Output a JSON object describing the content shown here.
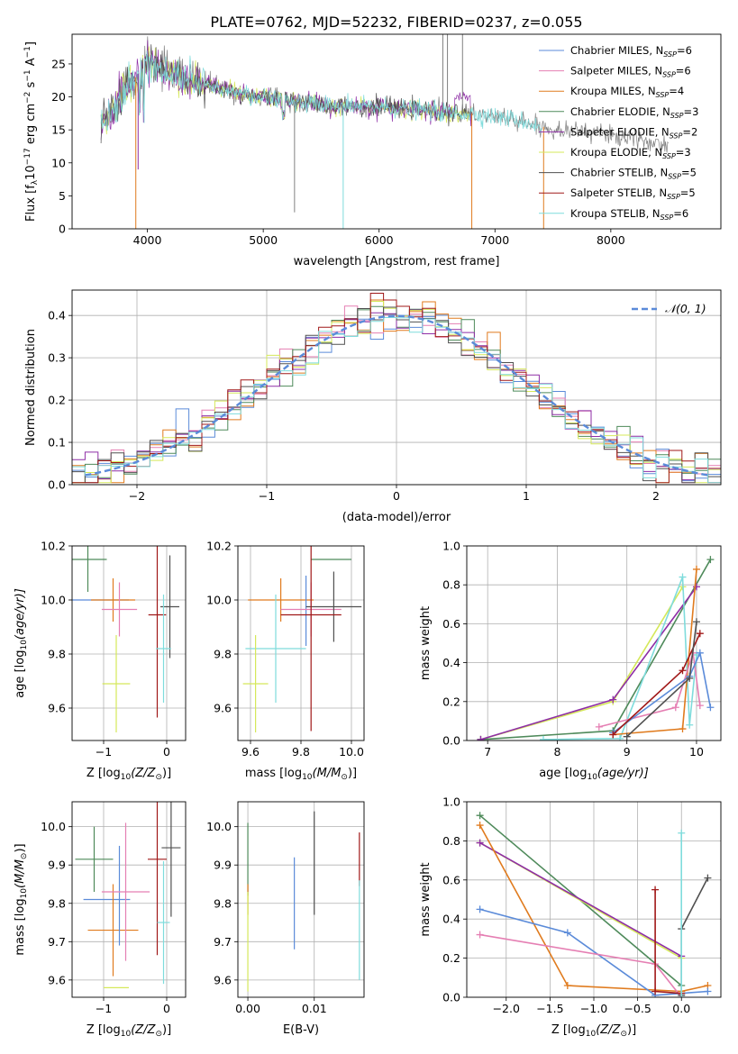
{
  "page_title": "PLATE=0762, MJD=52232, FIBERID=0237, z=0.055",
  "colors": {
    "chabrier_miles": "#5b8bd9",
    "salpeter_miles": "#e57fb3",
    "kroupa_miles": "#e07b1e",
    "chabrier_elodie": "#4e8a5a",
    "salpeter_elodie": "#8e2ea6",
    "kroupa_elodie": "#d5e85a",
    "chabrier_stelib": "#505050",
    "salpeter_stelib": "#a01818",
    "kroupa_stelib": "#7fdcdc",
    "gaussian": "#5b8bd9",
    "spectrum_gray": "#808080",
    "grid": "#b0b0b0"
  },
  "chart_data": [
    {
      "id": "spectrum",
      "type": "line",
      "title": "PLATE=0762, MJD=52232, FIBERID=0237, z=0.055",
      "xlabel": "wavelength [Angstrom, rest frame]",
      "ylabel_main": "Flux [f",
      "ylabel_sub1": "λ",
      "ylabel_mid": "10",
      "ylabel_sup1": "−17",
      "ylabel_mid2": " erg cm",
      "ylabel_sup2": "−2",
      "ylabel_mid3": " s",
      "ylabel_sup3": "−1",
      "ylabel_end": " A",
      "ylabel_sup4": "−1",
      "ylabel_close": "]",
      "xlim": [
        3350,
        8950
      ],
      "ylim": [
        0,
        29.5
      ],
      "xticks": [
        4000,
        5000,
        6000,
        7000,
        8000
      ],
      "yticks": [
        0,
        5,
        10,
        15,
        20,
        25
      ],
      "grid": false,
      "legend_position": "top-right",
      "legend": [
        {
          "label": "Chabrier MILES, N",
          "sub": "SSP",
          "suffix": "=6"
        },
        {
          "label": "Salpeter MILES, N",
          "sub": "SSP",
          "suffix": "=6"
        },
        {
          "label": "Kroupa MILES, N",
          "sub": "SSP",
          "suffix": "=4"
        },
        {
          "label": "Chabrier ELODIE, N",
          "sub": "SSP",
          "suffix": "=3"
        },
        {
          "label": "Salpeter ELODIE, N",
          "sub": "SSP",
          "suffix": "=2"
        },
        {
          "label": "Kroupa ELODIE, N",
          "sub": "SSP",
          "suffix": "=3"
        },
        {
          "label": "Chabrier STELIB, N",
          "sub": "SSP",
          "suffix": "=5"
        },
        {
          "label": "Salpeter STELIB, N",
          "sub": "SSP",
          "suffix": "=5"
        },
        {
          "label": "Kroupa STELIB, N",
          "sub": "SSP",
          "suffix": "=6"
        }
      ],
      "continuum": {
        "x": [
          3600,
          3700,
          3800,
          3900,
          4000,
          4100,
          4200,
          4300,
          4400,
          4500,
          4600,
          4700,
          4800,
          5000,
          5200,
          5400,
          5600,
          5800,
          6000,
          6200,
          6400,
          6600,
          6800,
          7000,
          7200,
          7400,
          7600,
          7800,
          8000,
          8200,
          8400,
          8500
        ],
        "y": [
          16,
          18,
          21,
          23,
          25.5,
          24.5,
          23.5,
          23,
          22.5,
          22,
          21.5,
          21,
          20.5,
          20,
          19.5,
          19,
          18.5,
          18.5,
          18.5,
          18.2,
          18,
          17.5,
          17.5,
          17,
          16.5,
          15.5,
          15,
          14.8,
          14.3,
          13.5,
          13,
          12.8
        ]
      }
    },
    {
      "id": "residuals",
      "type": "histogram",
      "xlabel": "(data-model)/error",
      "ylabel": "Normed distribution",
      "xlim": [
        -2.5,
        2.5
      ],
      "ylim": [
        0,
        0.46
      ],
      "xticks": [
        -2,
        -1,
        0,
        1,
        2
      ],
      "yticks": [
        0.0,
        0.1,
        0.2,
        0.3,
        0.4
      ],
      "grid": true,
      "legend_position": "top-right",
      "gaussian_label": "𝒩(0, 1)",
      "bin_width": 0.1
    },
    {
      "id": "age_vs_Z",
      "type": "scatter",
      "xlabel": "Z [log",
      "xlabel_sub": "10",
      "xlabel_rest": "(Z/Z",
      "xlabel_odot": "⊙",
      "xlabel_close": ")]",
      "ylabel": "age  [log",
      "ylabel_sub": "10",
      "ylabel_rest": "(age/yr)]",
      "xlim": [
        -1.5,
        0.3
      ],
      "ylim": [
        9.48,
        10.2
      ],
      "xticks": [
        -1,
        0
      ],
      "yticks": [
        9.6,
        9.8,
        10.0,
        10.2
      ],
      "points": [
        {
          "x": -1.25,
          "xerr": 0.3,
          "y": 10.15,
          "yerr": 0.12,
          "series": "chabrier_elodie"
        },
        {
          "x": -1.05,
          "xerr": 0.45,
          "y": 10.0,
          "yerr": 0.0,
          "series": "chabrier_miles"
        },
        {
          "x": -0.85,
          "xerr": 0.35,
          "y": 10.0,
          "yerr": 0.08,
          "series": "kroupa_miles"
        },
        {
          "x": -0.75,
          "xerr": 0.28,
          "y": 9.965,
          "yerr": 0.1,
          "series": "salpeter_miles"
        },
        {
          "x": -0.7,
          "xerr": 0.0,
          "y": 9.965,
          "yerr": 0.0,
          "series": "chabrier_miles"
        },
        {
          "x": -0.8,
          "xerr": 0.22,
          "y": 9.69,
          "yerr": 0.18,
          "series": "kroupa_elodie"
        },
        {
          "x": -0.15,
          "xerr": 0.14,
          "y": 9.945,
          "yerr": 0.38,
          "series": "salpeter_stelib"
        },
        {
          "x": 0.05,
          "xerr": 0.15,
          "y": 9.975,
          "yerr": 0.19,
          "series": "chabrier_stelib"
        },
        {
          "x": -0.05,
          "xerr": 0.12,
          "y": 9.82,
          "yerr": 0.2,
          "series": "kroupa_stelib"
        }
      ]
    },
    {
      "id": "age_vs_mass",
      "type": "scatter",
      "xlabel": "mass [log",
      "xlabel_sub": "10",
      "xlabel_rest": "(M/M",
      "xlabel_odot": "⊙",
      "xlabel_close": ")]",
      "xlim": [
        9.55,
        10.05
      ],
      "ylim": [
        9.48,
        10.2
      ],
      "xticks": [
        9.6,
        9.8,
        10.0
      ],
      "yticks": [
        9.6,
        9.8,
        10.0,
        10.2
      ],
      "points": [
        {
          "x": 9.92,
          "xerr": 0.08,
          "y": 10.15,
          "yerr": 0.0,
          "series": "chabrier_elodie"
        },
        {
          "x": 9.72,
          "xerr": 0.13,
          "y": 10.0,
          "yerr": 0.08,
          "series": "kroupa_miles"
        },
        {
          "x": 9.82,
          "xerr": 0.0,
          "y": 9.96,
          "yerr": 0.13,
          "series": "chabrier_miles"
        },
        {
          "x": 9.84,
          "xerr": 0.12,
          "y": 9.965,
          "yerr": 0.1,
          "series": "salpeter_miles"
        },
        {
          "x": 9.93,
          "xerr": 0.11,
          "y": 9.975,
          "yerr": 0.13,
          "series": "chabrier_stelib"
        },
        {
          "x": 9.84,
          "xerr": 0.12,
          "y": 9.945,
          "yerr": 0.43,
          "series": "salpeter_stelib"
        },
        {
          "x": 9.7,
          "xerr": 0.12,
          "y": 9.82,
          "yerr": 0.2,
          "series": "kroupa_stelib"
        },
        {
          "x": 9.62,
          "xerr": 0.05,
          "y": 9.69,
          "yerr": 0.18,
          "series": "kroupa_elodie"
        }
      ]
    },
    {
      "id": "massweight_vs_age",
      "type": "line",
      "xlabel": "age  [log",
      "xlabel_sub": "10",
      "xlabel_rest": "(age/yr)]",
      "ylabel": "mass weight",
      "xlim": [
        6.7,
        10.35
      ],
      "ylim": [
        0,
        1
      ],
      "xticks": [
        7,
        8,
        9,
        10
      ],
      "yticks": [
        0.0,
        0.2,
        0.4,
        0.6,
        0.8,
        1.0
      ],
      "grid": true,
      "series": [
        {
          "key": "kroupa_elodie",
          "x": [
            6.9,
            8.8,
            9.8
          ],
          "y": [
            0.005,
            0.2,
            0.79
          ]
        },
        {
          "key": "chabrier_elodie",
          "x": [
            6.9,
            8.8,
            10.2
          ],
          "y": [
            0.005,
            0.05,
            0.93
          ]
        },
        {
          "key": "salpeter_elodie",
          "x": [
            6.9,
            8.8,
            10.0
          ],
          "y": [
            0.005,
            0.21,
            0.79
          ]
        },
        {
          "key": "kroupa_stelib",
          "x": [
            7.8,
            8.9,
            9.8,
            9.9,
            10.0
          ],
          "y": [
            0.005,
            0.01,
            0.84,
            0.08,
            0.44
          ]
        },
        {
          "key": "kroupa_miles",
          "x": [
            8.8,
            9.8,
            10.0
          ],
          "y": [
            0.03,
            0.06,
            0.88
          ]
        },
        {
          "key": "salpeter_miles",
          "x": [
            8.6,
            9.7,
            9.95,
            10.05
          ],
          "y": [
            0.07,
            0.17,
            0.45,
            0.18
          ]
        },
        {
          "key": "chabrier_miles",
          "x": [
            8.8,
            9.9,
            10.05,
            10.2
          ],
          "y": [
            0.04,
            0.33,
            0.45,
            0.17
          ]
        },
        {
          "key": "salpeter_stelib",
          "x": [
            8.8,
            9.8,
            10.05
          ],
          "y": [
            0.03,
            0.36,
            0.55
          ]
        },
        {
          "key": "chabrier_stelib",
          "x": [
            9.0,
            9.9,
            10.0
          ],
          "y": [
            0.02,
            0.32,
            0.61
          ]
        }
      ]
    },
    {
      "id": "mass_vs_Z",
      "type": "scatter",
      "xlabel": "Z [log",
      "xlabel_sub": "10",
      "xlabel_rest": "(Z/Z",
      "xlabel_odot": "⊙",
      "xlabel_close": ")]",
      "ylabel": "mass [log",
      "ylabel_sub": "10",
      "ylabel_rest": "(M/M",
      "ylabel_odot": "⊙",
      "ylabel_close": ")]",
      "xlim": [
        -1.5,
        0.3
      ],
      "ylim": [
        9.555,
        10.065
      ],
      "xticks": [
        -1,
        0
      ],
      "yticks": [
        9.6,
        9.7,
        9.8,
        9.9,
        10.0
      ],
      "points": [
        {
          "x": -1.15,
          "xerr": 0.3,
          "y": 9.915,
          "yerr": 0.085,
          "series": "chabrier_elodie"
        },
        {
          "x": -0.95,
          "xerr": 0.37,
          "y": 9.81,
          "yerr": 0.0,
          "series": "chabrier_miles"
        },
        {
          "x": -0.85,
          "xerr": 0.4,
          "y": 9.73,
          "yerr": 0.12,
          "series": "kroupa_miles"
        },
        {
          "x": -0.75,
          "xerr": 0.0,
          "y": 9.82,
          "yerr": 0.13,
          "series": "chabrier_miles"
        },
        {
          "x": -0.65,
          "xerr": 0.38,
          "y": 9.83,
          "yerr": 0.18,
          "series": "salpeter_miles"
        },
        {
          "x": -0.8,
          "xerr": 0.2,
          "y": 9.58,
          "yerr": 0.0,
          "series": "kroupa_elodie"
        },
        {
          "x": -0.15,
          "xerr": 0.15,
          "y": 9.915,
          "yerr": 0.25,
          "series": "salpeter_stelib"
        },
        {
          "x": 0.07,
          "xerr": 0.15,
          "y": 9.945,
          "yerr": 0.18,
          "series": "chabrier_stelib"
        },
        {
          "x": -0.05,
          "xerr": 0.1,
          "y": 9.75,
          "yerr": 0.16,
          "series": "kroupa_stelib"
        }
      ]
    },
    {
      "id": "mass_vs_ebv",
      "type": "scatter",
      "xlabel": "E(B-V)",
      "xlim": [
        -0.0015,
        0.0175
      ],
      "ylim": [
        9.555,
        10.065
      ],
      "xticks": [
        0.0,
        0.01
      ],
      "yticks": [
        9.6,
        9.7,
        9.8,
        9.9,
        10.0
      ],
      "points": [
        {
          "x": 0.0,
          "y": 9.915,
          "yerr": 0.095,
          "series": "chabrier_elodie"
        },
        {
          "x": 0.0,
          "y": 9.81,
          "yerr": 0.04,
          "series": "kroupa_miles"
        },
        {
          "x": 0.0,
          "y": 9.7,
          "yerr": 0.13,
          "series": "kroupa_elodie"
        },
        {
          "x": 0.007,
          "y": 9.8,
          "yerr": 0.12,
          "series": "chabrier_miles"
        },
        {
          "x": 0.01,
          "y": 9.905,
          "yerr": 0.135,
          "series": "chabrier_stelib"
        },
        {
          "x": 0.0168,
          "y": 9.915,
          "yerr": 0.07,
          "series": "salpeter_stelib"
        },
        {
          "x": 0.0168,
          "y": 9.73,
          "yerr": 0.13,
          "series": "kroupa_stelib"
        }
      ]
    },
    {
      "id": "massweight_vs_Z",
      "type": "line",
      "xlabel": "Z [log",
      "xlabel_sub": "10",
      "xlabel_rest": "(Z/Z",
      "xlabel_odot": "⊙",
      "xlabel_close": ")]",
      "ylabel": "mass weight",
      "xlim": [
        -2.45,
        0.45
      ],
      "ylim": [
        0,
        1
      ],
      "xticks": [
        -2.0,
        -1.5,
        -1.0,
        -0.5,
        0.0
      ],
      "xtick_labels": [
        "−2.0",
        "−1.5",
        "−1.0",
        "−0.5",
        "0.0"
      ],
      "yticks": [
        0.0,
        0.2,
        0.4,
        0.6,
        0.8,
        1.0
      ],
      "grid": true,
      "series": [
        {
          "key": "chabrier_elodie",
          "x": [
            -2.3,
            0.0
          ],
          "y": [
            0.93,
            0.06
          ]
        },
        {
          "key": "kroupa_elodie",
          "x": [
            -2.3,
            0.0
          ],
          "y": [
            0.79,
            0.2
          ]
        },
        {
          "key": "salpeter_elodie",
          "x": [
            -2.3,
            0.0
          ],
          "y": [
            0.79,
            0.21
          ]
        },
        {
          "key": "kroupa_miles",
          "x": [
            -2.3,
            -1.3,
            0.0,
            0.3
          ],
          "y": [
            0.88,
            0.06,
            0.03,
            0.06
          ]
        },
        {
          "key": "chabrier_miles",
          "x": [
            -2.3,
            -1.3,
            -0.3,
            0.3
          ],
          "y": [
            0.45,
            0.33,
            0.01,
            0.03
          ]
        },
        {
          "key": "salpeter_miles",
          "x": [
            -2.3,
            -0.3,
            0.0
          ],
          "y": [
            0.32,
            0.17,
            0.0
          ]
        },
        {
          "key": "salpeter_stelib",
          "x": [
            -0.3,
            -0.3,
            0.0
          ],
          "y": [
            0.55,
            0.03,
            0.02
          ]
        },
        {
          "key": "chabrier_stelib",
          "x": [
            0.0,
            0.0,
            0.3
          ],
          "y": [
            0.01,
            0.35,
            0.61
          ]
        },
        {
          "key": "kroupa_stelib",
          "x": [
            0.0,
            0.0
          ],
          "y": [
            0.84,
            0.0
          ]
        }
      ]
    }
  ]
}
